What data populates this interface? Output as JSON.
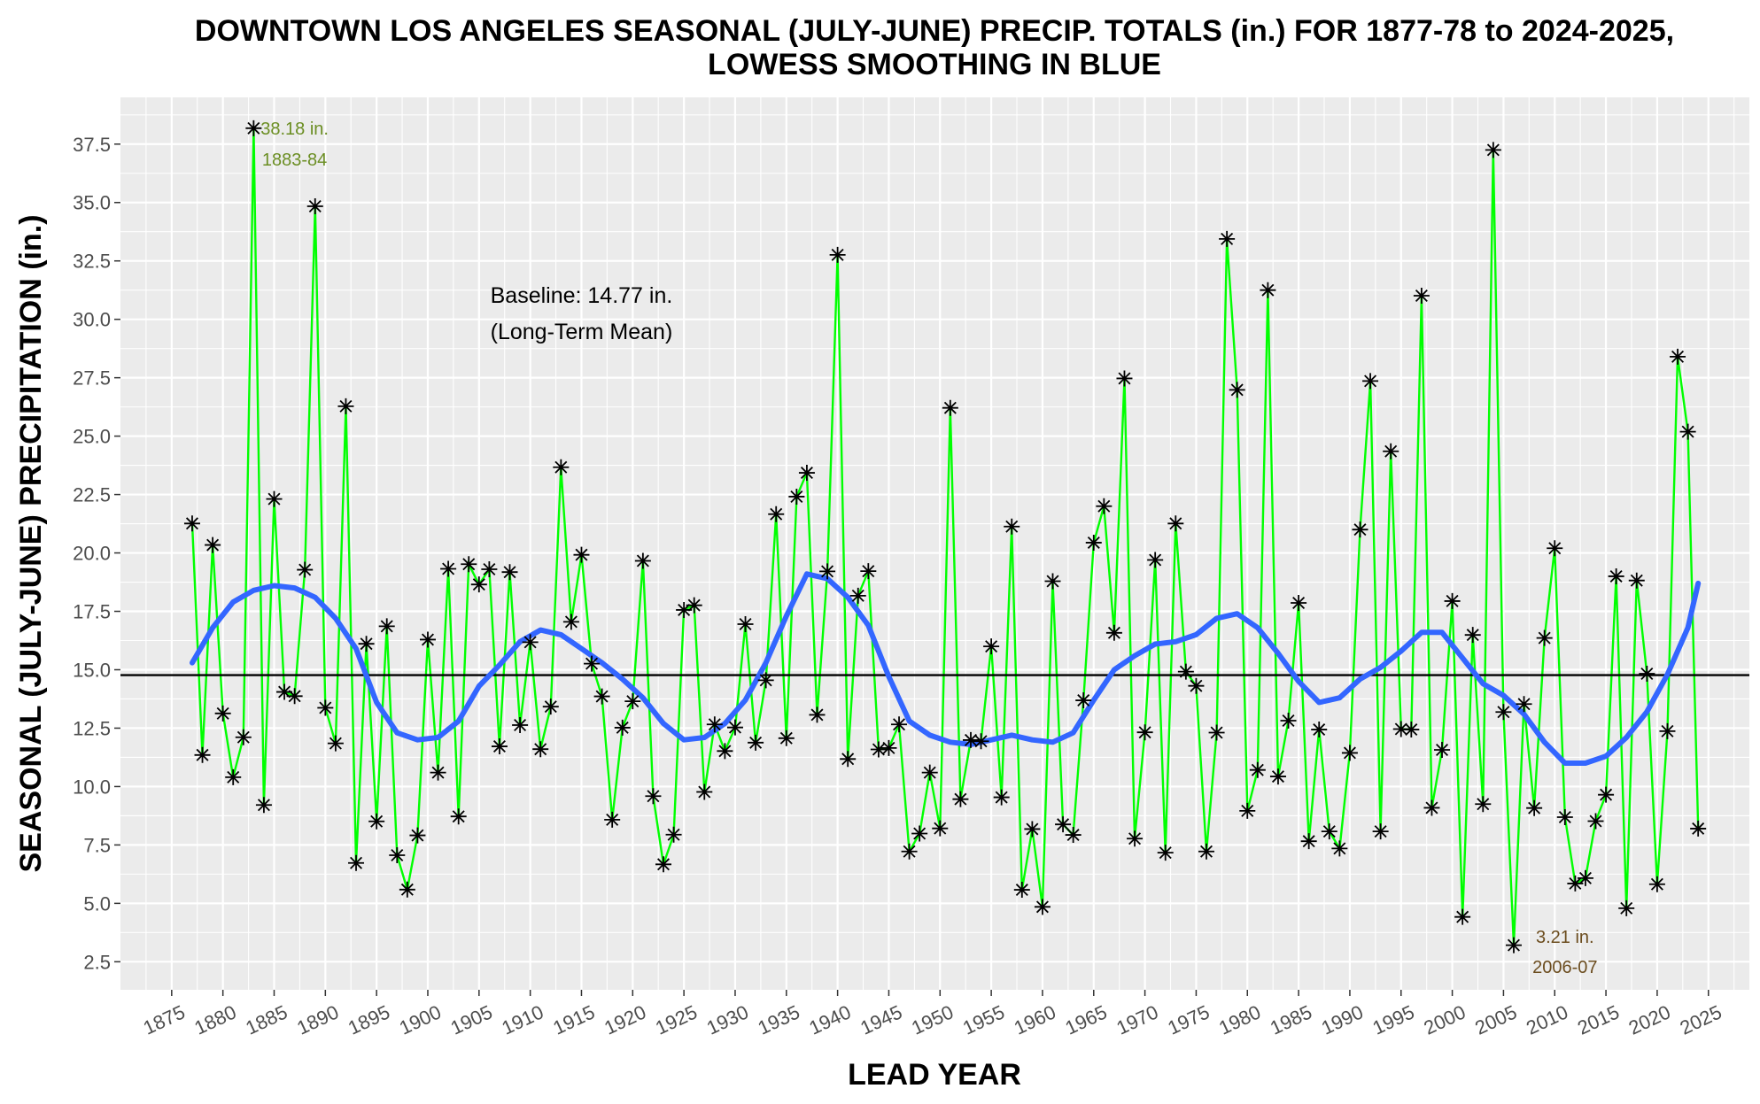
{
  "chart_data": {
    "type": "line",
    "title": "DOWNTOWN LOS ANGELES SEASONAL (JULY-JUNE) PRECIP. TOTALS (in.) FOR 1877-78 to 2024-2025,",
    "subtitle": "LOWESS SMOOTHING IN BLUE",
    "xlabel": "LEAD YEAR",
    "ylabel": "SEASONAL (JULY-JUNE) PRECIPITATION (in.)",
    "xlim": [
      1870,
      2029
    ],
    "ylim": [
      1.3,
      39.5
    ],
    "x_ticks": [
      1875,
      1880,
      1885,
      1890,
      1895,
      1900,
      1905,
      1910,
      1915,
      1920,
      1925,
      1930,
      1935,
      1940,
      1945,
      1950,
      1955,
      1960,
      1965,
      1970,
      1975,
      1980,
      1985,
      1990,
      1995,
      2000,
      2005,
      2010,
      2015,
      2020,
      2025
    ],
    "y_ticks": [
      2.5,
      5.0,
      7.5,
      10.0,
      12.5,
      15.0,
      17.5,
      20.0,
      22.5,
      25.0,
      27.5,
      30.0,
      32.5,
      35.0,
      37.5
    ],
    "y_tick_labels": [
      "2.5",
      "5.0",
      "7.5",
      "10.0",
      "12.5",
      "15.0",
      "17.5",
      "20.0",
      "22.5",
      "25.0",
      "27.5",
      "30.0",
      "32.5",
      "35.0",
      "37.5"
    ],
    "grid": true,
    "colors": {
      "panel_background": "#ebebeb",
      "grid": "#ffffff",
      "series_line": "#00ff00",
      "markers": "#000000",
      "smooth": "#3366ff",
      "baseline": "#000000",
      "max_annotation": "#6b8e23",
      "min_annotation": "#6b4c1e"
    },
    "series": [
      {
        "marker": "asterisk",
        "x": [
          1877,
          1878,
          1879,
          1880,
          1881,
          1882,
          1883,
          1884,
          1885,
          1886,
          1887,
          1888,
          1889,
          1890,
          1891,
          1892,
          1893,
          1894,
          1895,
          1896,
          1897,
          1898,
          1899,
          1900,
          1901,
          1902,
          1903,
          1904,
          1905,
          1906,
          1907,
          1908,
          1909,
          1910,
          1911,
          1912,
          1913,
          1914,
          1915,
          1916,
          1917,
          1918,
          1919,
          1920,
          1921,
          1922,
          1923,
          1924,
          1925,
          1926,
          1927,
          1928,
          1929,
          1930,
          1931,
          1932,
          1933,
          1934,
          1935,
          1936,
          1937,
          1938,
          1939,
          1940,
          1941,
          1942,
          1943,
          1944,
          1945,
          1946,
          1947,
          1948,
          1949,
          1950,
          1951,
          1952,
          1953,
          1954,
          1955,
          1956,
          1957,
          1958,
          1959,
          1960,
          1961,
          1962,
          1963,
          1964,
          1965,
          1966,
          1967,
          1968,
          1969,
          1970,
          1971,
          1972,
          1973,
          1974,
          1975,
          1976,
          1977,
          1978,
          1979,
          1980,
          1981,
          1982,
          1983,
          1984,
          1985,
          1986,
          1987,
          1988,
          1989,
          1990,
          1991,
          1992,
          1993,
          1994,
          1995,
          1996,
          1997,
          1998,
          1999,
          2000,
          2001,
          2002,
          2003,
          2004,
          2005,
          2006,
          2007,
          2008,
          2009,
          2010,
          2011,
          2012,
          2013,
          2014,
          2015,
          2016,
          2017,
          2018,
          2019,
          2020,
          2021,
          2022,
          2023,
          2024
        ],
        "y": [
          21.26,
          11.35,
          20.34,
          13.13,
          10.4,
          12.11,
          38.18,
          9.21,
          22.31,
          14.05,
          13.87,
          19.28,
          34.84,
          13.37,
          11.85,
          26.28,
          6.73,
          16.11,
          8.51,
          16.86,
          7.06,
          5.59,
          7.91,
          16.29,
          10.6,
          19.32,
          8.72,
          19.52,
          18.65,
          19.3,
          11.72,
          19.18,
          12.63,
          16.18,
          11.6,
          13.42,
          23.67,
          17.05,
          19.92,
          15.26,
          13.86,
          8.58,
          12.52,
          13.65,
          19.66,
          9.59,
          6.67,
          7.94,
          17.56,
          17.76,
          9.77,
          12.66,
          11.52,
          12.53,
          16.95,
          11.88,
          14.55,
          21.66,
          12.07,
          22.41,
          23.43,
          13.07,
          19.21,
          32.76,
          11.18,
          18.17,
          19.22,
          11.59,
          11.65,
          12.66,
          7.22,
          7.99,
          10.6,
          8.21,
          26.21,
          9.46,
          11.99,
          11.94,
          16.0,
          9.54,
          21.13,
          5.58,
          8.18,
          4.85,
          18.79,
          8.38,
          7.93,
          13.69,
          20.44,
          22.0,
          16.58,
          27.47,
          7.77,
          12.32,
          19.7,
          7.17,
          21.26,
          14.92,
          14.31,
          7.22,
          12.31,
          33.44,
          26.98,
          8.96,
          10.71,
          31.25,
          10.43,
          12.82,
          17.86,
          7.66,
          12.44,
          8.08,
          7.35,
          11.44,
          21.0,
          27.36,
          8.08,
          24.35,
          12.46,
          12.44,
          31.01,
          9.09,
          11.57,
          17.94,
          4.42,
          16.49,
          9.25,
          37.25,
          13.19,
          3.21,
          13.53,
          9.08,
          16.36,
          20.2,
          8.69,
          5.85,
          6.08,
          8.52,
          9.65,
          19.0,
          4.79,
          18.82,
          14.83,
          5.82,
          12.37,
          28.4,
          25.19,
          8.2
        ]
      },
      {
        "name": "LOWESS",
        "x": [
          1877,
          1879,
          1881,
          1883,
          1885,
          1887,
          1889,
          1891,
          1893,
          1895,
          1897,
          1899,
          1901,
          1903,
          1905,
          1907,
          1909,
          1911,
          1913,
          1915,
          1917,
          1919,
          1921,
          1923,
          1925,
          1927,
          1929,
          1931,
          1933,
          1935,
          1937,
          1939,
          1941,
          1943,
          1945,
          1947,
          1949,
          1951,
          1953,
          1955,
          1957,
          1959,
          1961,
          1963,
          1965,
          1967,
          1969,
          1971,
          1973,
          1975,
          1977,
          1979,
          1981,
          1983,
          1985,
          1987,
          1989,
          1991,
          1993,
          1995,
          1997,
          1999,
          2001,
          2003,
          2005,
          2007,
          2009,
          2011,
          2013,
          2015,
          2017,
          2019,
          2021,
          2023,
          2024
        ],
        "y": [
          15.3,
          16.8,
          17.9,
          18.4,
          18.6,
          18.5,
          18.1,
          17.2,
          15.9,
          13.6,
          12.3,
          12.0,
          12.1,
          12.8,
          14.3,
          15.2,
          16.2,
          16.7,
          16.5,
          15.9,
          15.3,
          14.6,
          13.8,
          12.7,
          12.0,
          12.1,
          12.7,
          13.7,
          15.3,
          17.3,
          19.1,
          18.9,
          18.1,
          16.9,
          14.7,
          12.8,
          12.2,
          11.9,
          11.8,
          12.0,
          12.2,
          12.0,
          11.9,
          12.3,
          13.7,
          15.0,
          15.6,
          16.1,
          16.2,
          16.5,
          17.2,
          17.4,
          16.8,
          15.7,
          14.5,
          13.6,
          13.8,
          14.6,
          15.1,
          15.8,
          16.6,
          16.6,
          15.5,
          14.4,
          13.9,
          13.1,
          11.9,
          11.0,
          11.0,
          11.3,
          12.1,
          13.2,
          14.8,
          16.8,
          18.7
        ]
      }
    ],
    "baseline": {
      "value": 14.77,
      "line1": "Baseline: 14.77 in.",
      "line2": "(Long-Term Mean)",
      "x": 1915,
      "y": 30.7
    },
    "annotations": [
      {
        "id": "max",
        "line1": "38.18 in.",
        "line2": "1883-84",
        "x": 1887,
        "y": 37.9
      },
      {
        "id": "min",
        "line1": "3.21 in.",
        "line2": "2006-07",
        "x": 2011,
        "y": 3.3
      }
    ]
  }
}
